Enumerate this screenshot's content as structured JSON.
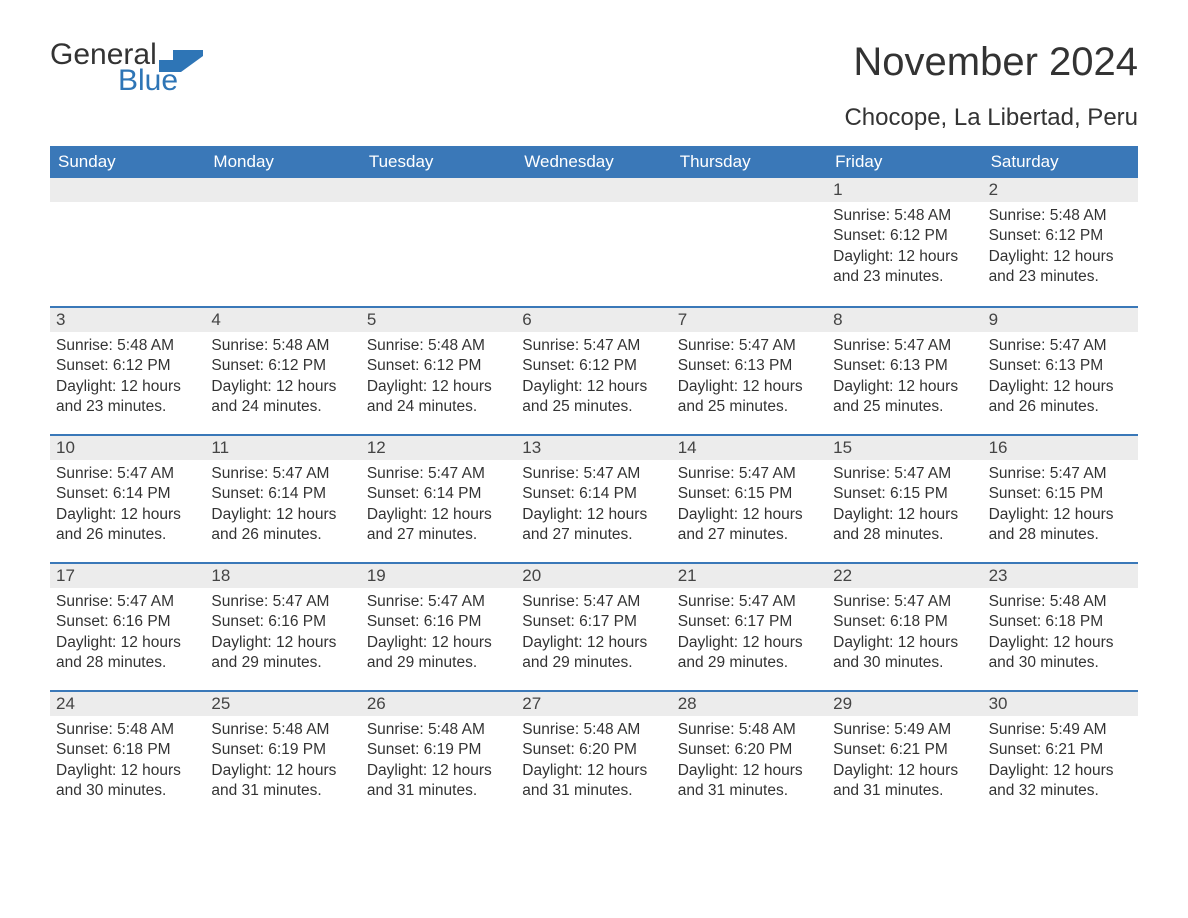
{
  "brand": {
    "word1": "General",
    "word2": "Blue",
    "accent_color": "#2e75b6"
  },
  "title": "November 2024",
  "location": "Chocope, La Libertad, Peru",
  "colors": {
    "header_bg": "#3a78b8",
    "header_text": "#ffffff",
    "daynum_bg": "#ececec",
    "row_divider": "#3a78b8",
    "text": "#333333",
    "background": "#ffffff"
  },
  "day_headers": [
    "Sunday",
    "Monday",
    "Tuesday",
    "Wednesday",
    "Thursday",
    "Friday",
    "Saturday"
  ],
  "weeks": [
    [
      null,
      null,
      null,
      null,
      null,
      {
        "n": "1",
        "sunrise": "Sunrise: 5:48 AM",
        "sunset": "Sunset: 6:12 PM",
        "daylight": "Daylight: 12 hours and 23 minutes."
      },
      {
        "n": "2",
        "sunrise": "Sunrise: 5:48 AM",
        "sunset": "Sunset: 6:12 PM",
        "daylight": "Daylight: 12 hours and 23 minutes."
      }
    ],
    [
      {
        "n": "3",
        "sunrise": "Sunrise: 5:48 AM",
        "sunset": "Sunset: 6:12 PM",
        "daylight": "Daylight: 12 hours and 23 minutes."
      },
      {
        "n": "4",
        "sunrise": "Sunrise: 5:48 AM",
        "sunset": "Sunset: 6:12 PM",
        "daylight": "Daylight: 12 hours and 24 minutes."
      },
      {
        "n": "5",
        "sunrise": "Sunrise: 5:48 AM",
        "sunset": "Sunset: 6:12 PM",
        "daylight": "Daylight: 12 hours and 24 minutes."
      },
      {
        "n": "6",
        "sunrise": "Sunrise: 5:47 AM",
        "sunset": "Sunset: 6:12 PM",
        "daylight": "Daylight: 12 hours and 25 minutes."
      },
      {
        "n": "7",
        "sunrise": "Sunrise: 5:47 AM",
        "sunset": "Sunset: 6:13 PM",
        "daylight": "Daylight: 12 hours and 25 minutes."
      },
      {
        "n": "8",
        "sunrise": "Sunrise: 5:47 AM",
        "sunset": "Sunset: 6:13 PM",
        "daylight": "Daylight: 12 hours and 25 minutes."
      },
      {
        "n": "9",
        "sunrise": "Sunrise: 5:47 AM",
        "sunset": "Sunset: 6:13 PM",
        "daylight": "Daylight: 12 hours and 26 minutes."
      }
    ],
    [
      {
        "n": "10",
        "sunrise": "Sunrise: 5:47 AM",
        "sunset": "Sunset: 6:14 PM",
        "daylight": "Daylight: 12 hours and 26 minutes."
      },
      {
        "n": "11",
        "sunrise": "Sunrise: 5:47 AM",
        "sunset": "Sunset: 6:14 PM",
        "daylight": "Daylight: 12 hours and 26 minutes."
      },
      {
        "n": "12",
        "sunrise": "Sunrise: 5:47 AM",
        "sunset": "Sunset: 6:14 PM",
        "daylight": "Daylight: 12 hours and 27 minutes."
      },
      {
        "n": "13",
        "sunrise": "Sunrise: 5:47 AM",
        "sunset": "Sunset: 6:14 PM",
        "daylight": "Daylight: 12 hours and 27 minutes."
      },
      {
        "n": "14",
        "sunrise": "Sunrise: 5:47 AM",
        "sunset": "Sunset: 6:15 PM",
        "daylight": "Daylight: 12 hours and 27 minutes."
      },
      {
        "n": "15",
        "sunrise": "Sunrise: 5:47 AM",
        "sunset": "Sunset: 6:15 PM",
        "daylight": "Daylight: 12 hours and 28 minutes."
      },
      {
        "n": "16",
        "sunrise": "Sunrise: 5:47 AM",
        "sunset": "Sunset: 6:15 PM",
        "daylight": "Daylight: 12 hours and 28 minutes."
      }
    ],
    [
      {
        "n": "17",
        "sunrise": "Sunrise: 5:47 AM",
        "sunset": "Sunset: 6:16 PM",
        "daylight": "Daylight: 12 hours and 28 minutes."
      },
      {
        "n": "18",
        "sunrise": "Sunrise: 5:47 AM",
        "sunset": "Sunset: 6:16 PM",
        "daylight": "Daylight: 12 hours and 29 minutes."
      },
      {
        "n": "19",
        "sunrise": "Sunrise: 5:47 AM",
        "sunset": "Sunset: 6:16 PM",
        "daylight": "Daylight: 12 hours and 29 minutes."
      },
      {
        "n": "20",
        "sunrise": "Sunrise: 5:47 AM",
        "sunset": "Sunset: 6:17 PM",
        "daylight": "Daylight: 12 hours and 29 minutes."
      },
      {
        "n": "21",
        "sunrise": "Sunrise: 5:47 AM",
        "sunset": "Sunset: 6:17 PM",
        "daylight": "Daylight: 12 hours and 29 minutes."
      },
      {
        "n": "22",
        "sunrise": "Sunrise: 5:47 AM",
        "sunset": "Sunset: 6:18 PM",
        "daylight": "Daylight: 12 hours and 30 minutes."
      },
      {
        "n": "23",
        "sunrise": "Sunrise: 5:48 AM",
        "sunset": "Sunset: 6:18 PM",
        "daylight": "Daylight: 12 hours and 30 minutes."
      }
    ],
    [
      {
        "n": "24",
        "sunrise": "Sunrise: 5:48 AM",
        "sunset": "Sunset: 6:18 PM",
        "daylight": "Daylight: 12 hours and 30 minutes."
      },
      {
        "n": "25",
        "sunrise": "Sunrise: 5:48 AM",
        "sunset": "Sunset: 6:19 PM",
        "daylight": "Daylight: 12 hours and 31 minutes."
      },
      {
        "n": "26",
        "sunrise": "Sunrise: 5:48 AM",
        "sunset": "Sunset: 6:19 PM",
        "daylight": "Daylight: 12 hours and 31 minutes."
      },
      {
        "n": "27",
        "sunrise": "Sunrise: 5:48 AM",
        "sunset": "Sunset: 6:20 PM",
        "daylight": "Daylight: 12 hours and 31 minutes."
      },
      {
        "n": "28",
        "sunrise": "Sunrise: 5:48 AM",
        "sunset": "Sunset: 6:20 PM",
        "daylight": "Daylight: 12 hours and 31 minutes."
      },
      {
        "n": "29",
        "sunrise": "Sunrise: 5:49 AM",
        "sunset": "Sunset: 6:21 PM",
        "daylight": "Daylight: 12 hours and 31 minutes."
      },
      {
        "n": "30",
        "sunrise": "Sunrise: 5:49 AM",
        "sunset": "Sunset: 6:21 PM",
        "daylight": "Daylight: 12 hours and 32 minutes."
      }
    ]
  ]
}
